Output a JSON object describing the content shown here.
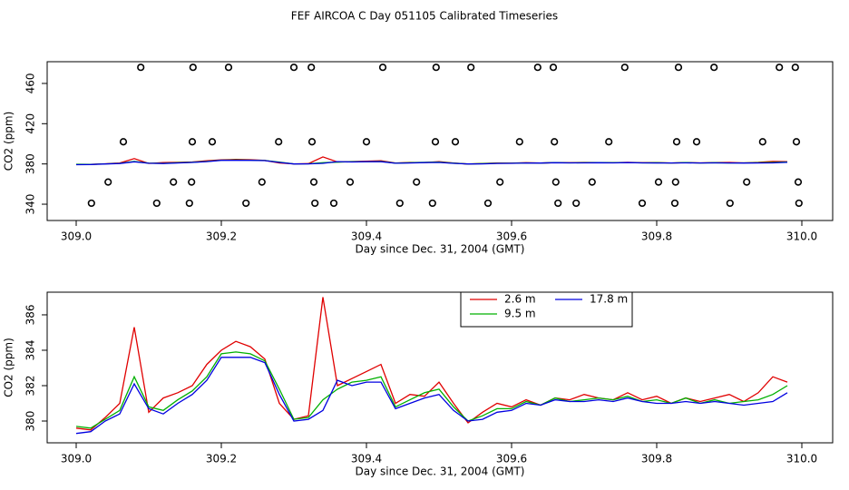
{
  "chart_data": [
    {
      "type": "scatter",
      "title": "FEF AIRCOA C  Day 051105  Calibrated Timeseries",
      "x_label": "Day since Dec. 31, 2004 (GMT)",
      "y_label": "CO2 (ppm)",
      "xlim": [
        308.96,
        310.0425
      ],
      "ylim": [
        323.8,
        481.6
      ],
      "xticks": [
        {
          "value": 309,
          "label": "309.0"
        },
        309.2,
        309.4,
        309.6,
        309.8,
        {
          "value": 310,
          "label": "310.0"
        }
      ],
      "yticks": [
        340,
        380,
        420,
        460
      ],
      "marker_color": "#000000",
      "x": [
        309.089,
        309.161,
        309.21,
        309.3,
        309.324,
        309.4225,
        309.496,
        309.544,
        309.636,
        309.6575,
        309.756,
        309.83,
        309.879,
        309.969,
        309.991,
        309.065,
        309.16,
        309.1875,
        309.279,
        309.325,
        309.4,
        309.495,
        309.5225,
        309.611,
        309.659,
        309.734,
        309.8275,
        309.855,
        309.946,
        309.9925,
        309.044,
        309.134,
        309.159,
        309.256,
        309.3275,
        309.3775,
        309.469,
        309.584,
        309.661,
        309.711,
        309.8025,
        309.826,
        309.924,
        309.995,
        309.021,
        309.111,
        309.156,
        309.234,
        309.329,
        309.355,
        309.446,
        309.491,
        309.5675,
        309.664,
        309.689,
        309.78,
        309.825,
        309.901,
        309.996
      ],
      "y": [
        476,
        476,
        476,
        476,
        476,
        476,
        476,
        476,
        476,
        476,
        476,
        476,
        476,
        476,
        476,
        402,
        402,
        402,
        402,
        402,
        402,
        402,
        402,
        402,
        402,
        402,
        402,
        402,
        402,
        402,
        362,
        362,
        362,
        362,
        362,
        362,
        362,
        362,
        362,
        362,
        362,
        362,
        362,
        362,
        341,
        341,
        341,
        341,
        341,
        341,
        341,
        341,
        341,
        341,
        341,
        341,
        341,
        341,
        341
      ]
    },
    {
      "type": "line",
      "x_label": "Day since Dec. 31, 2004 (GMT)",
      "y_label": "CO2 (ppm)",
      "xlim": [
        308.96,
        310.0425
      ],
      "ylim": [
        378.77,
        387.28
      ],
      "xticks": [
        {
          "value": 309,
          "label": "309.0"
        },
        309.2,
        309.4,
        309.6,
        309.8,
        {
          "value": 310,
          "label": "310.0"
        }
      ],
      "yticks": [
        380,
        382,
        384,
        386
      ],
      "x": [
        309.0,
        309.02,
        309.04,
        309.06,
        309.08,
        309.1,
        309.12,
        309.14,
        309.16,
        309.18,
        309.2,
        309.22,
        309.24,
        309.26,
        309.28,
        309.3,
        309.32,
        309.34,
        309.36,
        309.38,
        309.4,
        309.42,
        309.44,
        309.46,
        309.48,
        309.5,
        309.52,
        309.54,
        309.56,
        309.58,
        309.6,
        309.62,
        309.64,
        309.66,
        309.68,
        309.7,
        309.72,
        309.74,
        309.76,
        309.78,
        309.8,
        309.82,
        309.84,
        309.86,
        309.88,
        309.9,
        309.92,
        309.94,
        309.96,
        309.98
      ],
      "series": [
        {
          "name": "2.6 m",
          "color": "#e00000",
          "values": [
            379.6,
            379.5,
            380.2,
            381.0,
            385.3,
            380.5,
            381.3,
            381.6,
            382.0,
            383.2,
            384.0,
            384.5,
            384.2,
            383.5,
            381.0,
            380.1,
            380.3,
            387.0,
            382.0,
            382.4,
            382.8,
            383.2,
            381.0,
            381.5,
            381.4,
            382.2,
            381.0,
            379.9,
            380.5,
            381.0,
            380.8,
            381.2,
            380.9,
            381.3,
            381.2,
            381.5,
            381.3,
            381.2,
            381.6,
            381.2,
            381.4,
            381.0,
            381.3,
            381.1,
            381.3,
            381.5,
            381.1,
            381.6,
            382.5,
            382.2
          ]
        },
        {
          "name": "9.5 m",
          "color": "#00b000",
          "values": [
            379.7,
            379.6,
            380.1,
            380.6,
            382.5,
            380.8,
            380.6,
            381.2,
            381.7,
            382.5,
            383.8,
            383.9,
            383.8,
            383.4,
            381.8,
            380.1,
            380.2,
            381.2,
            381.8,
            382.2,
            382.3,
            382.5,
            380.8,
            381.2,
            381.6,
            381.8,
            380.8,
            380.0,
            380.3,
            380.7,
            380.7,
            381.1,
            380.9,
            381.3,
            381.1,
            381.2,
            381.3,
            381.2,
            381.4,
            381.1,
            381.2,
            381.0,
            381.3,
            381.0,
            381.2,
            381.0,
            381.1,
            381.2,
            381.5,
            382.0
          ]
        },
        {
          "name": "17.8 m",
          "color": "#0000e0",
          "values": [
            379.3,
            379.4,
            380.0,
            380.4,
            382.1,
            380.7,
            380.4,
            381.0,
            381.5,
            382.3,
            383.6,
            383.6,
            383.6,
            383.3,
            381.5,
            380.0,
            380.1,
            380.6,
            382.3,
            382.0,
            382.2,
            382.2,
            380.7,
            381.0,
            381.3,
            381.5,
            380.6,
            380.0,
            380.1,
            380.5,
            380.6,
            381.0,
            380.9,
            381.2,
            381.1,
            381.1,
            381.2,
            381.1,
            381.3,
            381.1,
            381.0,
            381.0,
            381.1,
            381.0,
            381.1,
            381.0,
            380.9,
            381.0,
            381.1,
            381.6
          ]
        }
      ]
    }
  ]
}
